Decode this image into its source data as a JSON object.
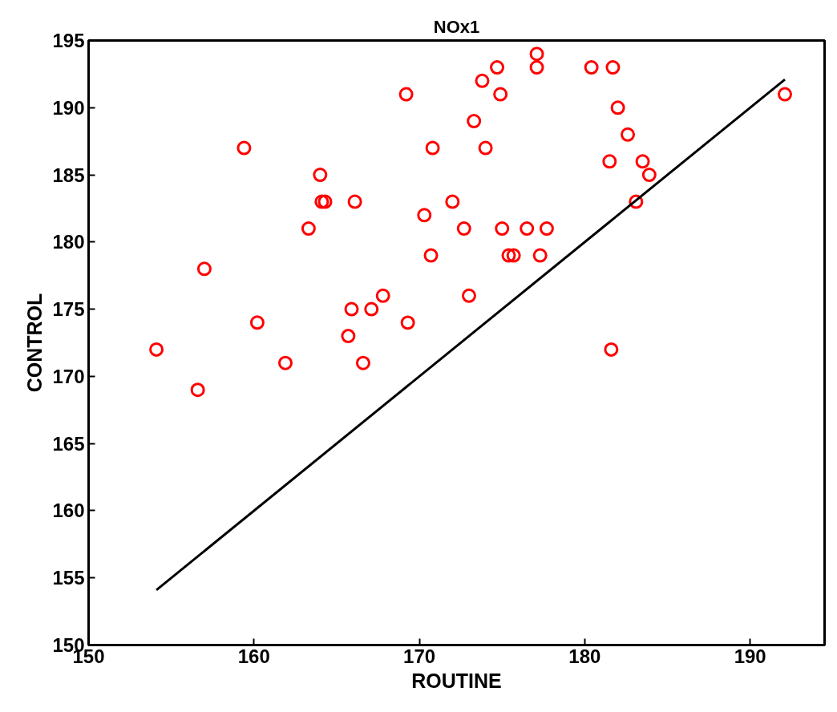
{
  "chart_data": {
    "type": "scatter",
    "title": "NOx1",
    "xlabel": "ROUTINE",
    "ylabel": "CONTROL",
    "xlim": [
      150,
      194.5
    ],
    "ylim": [
      150,
      195
    ],
    "xticks": [
      150,
      160,
      170,
      180,
      190
    ],
    "yticks": [
      150,
      155,
      160,
      165,
      170,
      175,
      180,
      185,
      190,
      195
    ],
    "grid": false,
    "series": [
      {
        "marker": "circle",
        "color": "#ff0000",
        "x": [
          169.2,
          159.4,
          164.0,
          164.1,
          164.3,
          166.1,
          170.3,
          172.0,
          170.8,
          163.3,
          170.7,
          157.0,
          177.1,
          177.1,
          174.7,
          173.8,
          174.9,
          180.4,
          181.7,
          192.1,
          182.0,
          173.3,
          182.6,
          174.0,
          181.5,
          183.5,
          183.9,
          183.1,
          172.7,
          175.0,
          176.5,
          177.7,
          175.4,
          175.7,
          177.3,
          167.8,
          165.9,
          167.1,
          160.2,
          169.3,
          154.1,
          165.7,
          161.9,
          166.6,
          156.6,
          173.0,
          181.6
        ],
        "values": [
          191,
          187,
          185,
          183,
          183,
          183,
          182,
          183,
          187,
          181,
          179,
          178,
          194,
          193,
          193,
          192,
          191,
          193,
          193,
          191,
          190,
          189,
          188,
          187,
          186,
          186,
          185,
          183,
          181,
          181,
          181,
          181,
          179,
          179,
          179,
          176,
          175,
          175,
          174,
          174,
          172,
          173,
          171,
          171,
          169,
          176,
          172
        ]
      },
      {
        "type": "line",
        "line_style": "solid",
        "color": "#000000",
        "x": [
          154.1,
          192.1
        ],
        "values": [
          154.1,
          192.1
        ]
      }
    ]
  }
}
